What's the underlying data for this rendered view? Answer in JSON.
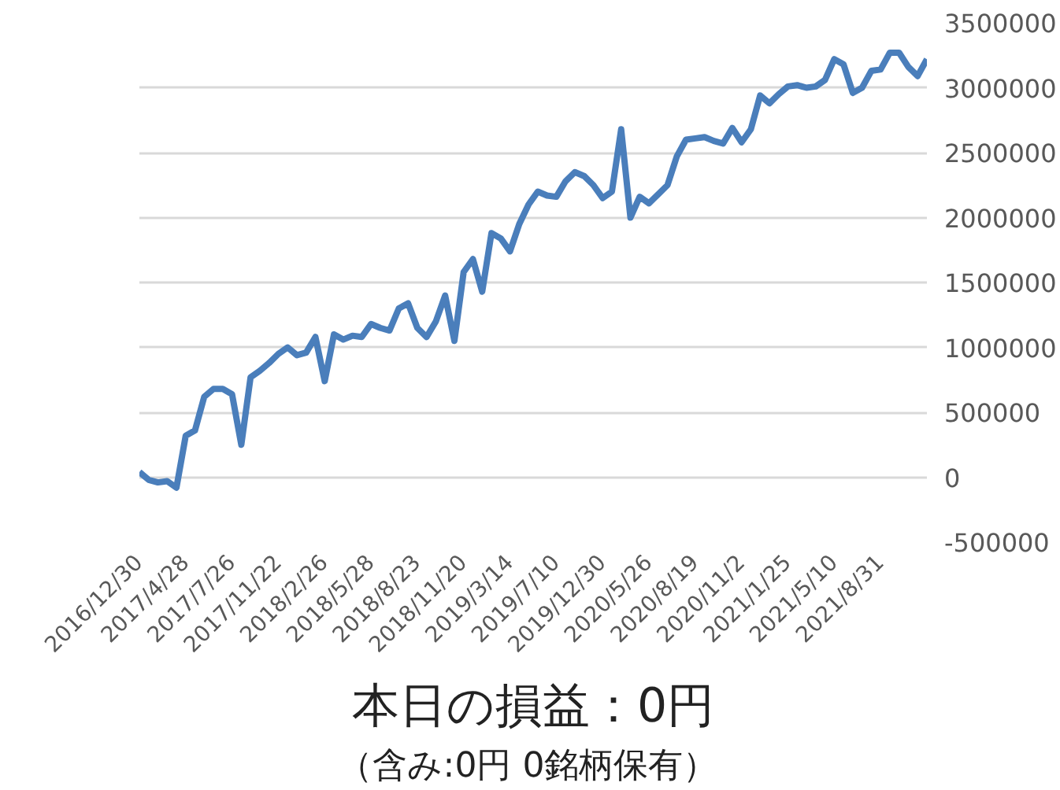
{
  "chart_data": {
    "type": "line",
    "categories": [
      "2016/12/30",
      null,
      null,
      null,
      null,
      "2017/4/28",
      null,
      null,
      null,
      null,
      "2017/7/26",
      null,
      null,
      null,
      null,
      "2017/11/22",
      null,
      null,
      null,
      null,
      "2018/2/26",
      null,
      null,
      null,
      null,
      "2018/5/28",
      null,
      null,
      null,
      null,
      "2018/8/23",
      null,
      null,
      null,
      null,
      "2018/11/20",
      null,
      null,
      null,
      null,
      "2019/3/14",
      null,
      null,
      null,
      null,
      "2019/7/10",
      null,
      null,
      null,
      null,
      "2019/12/30",
      null,
      null,
      null,
      null,
      "2020/5/26",
      null,
      null,
      null,
      null,
      "2020/8/19",
      null,
      null,
      null,
      null,
      "2020/11/2",
      null,
      null,
      null,
      null,
      "2021/1/25",
      null,
      null,
      null,
      null,
      "2021/5/10",
      null,
      null,
      null,
      null,
      "2021/8/31",
      null,
      null,
      null,
      null,
      null
    ],
    "series": [
      {
        "color": "#4a7ebb",
        "values": [
          40000,
          -20000,
          -40000,
          -30000,
          -80000,
          320000,
          360000,
          620000,
          680000,
          680000,
          640000,
          250000,
          770000,
          820000,
          880000,
          950000,
          1000000,
          940000,
          960000,
          1080000,
          740000,
          1100000,
          1060000,
          1090000,
          1080000,
          1180000,
          1150000,
          1130000,
          1300000,
          1340000,
          1150000,
          1080000,
          1200000,
          1400000,
          1050000,
          1580000,
          1680000,
          1430000,
          1880000,
          1840000,
          1740000,
          1950000,
          2100000,
          2200000,
          2170000,
          2160000,
          2280000,
          2350000,
          2320000,
          2250000,
          2150000,
          2200000,
          2680000,
          2000000,
          2160000,
          2110000,
          2180000,
          2250000,
          2470000,
          2600000,
          2610000,
          2620000,
          2590000,
          2570000,
          2690000,
          2580000,
          2680000,
          2940000,
          2880000,
          2950000,
          3010000,
          3020000,
          3000000,
          3010000,
          3060000,
          3220000,
          3180000,
          2960000,
          3000000,
          3130000,
          3140000,
          3270000,
          3270000,
          3160000,
          3090000,
          3220000
        ]
      }
    ],
    "ylim": [
      -500000,
      3500000
    ],
    "yticks": [
      -500000,
      0,
      500000,
      1000000,
      1500000,
      2000000,
      2500000,
      3000000,
      3500000
    ],
    "grid": "y",
    "annotations": [
      "本日の損益：0円",
      "（含み:0円  0銘柄保有）"
    ]
  }
}
